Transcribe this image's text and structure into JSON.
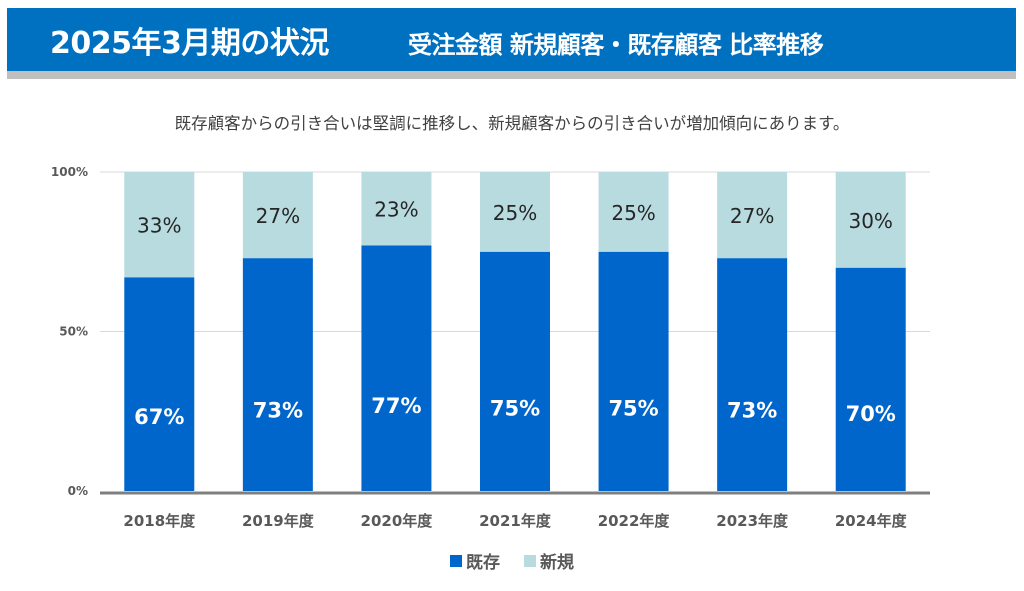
{
  "header": {
    "title": "2025年3月期の状況",
    "subtitle": "受注金額 新規顧客・既存顧客 比率推移"
  },
  "description": "既存顧客からの引き合いは堅調に推移し、新規顧客からの引き合いが増加傾向にあります。",
  "colors": {
    "header_bg": "#0070c0",
    "existing": "#0066cc",
    "new": "#b8dbe0"
  },
  "chart_data": {
    "type": "bar",
    "stacked": true,
    "title": "",
    "xlabel": "",
    "ylabel": "",
    "ylim": [
      0,
      100
    ],
    "yticks": [
      "0%",
      "50%",
      "100%"
    ],
    "ytick_values": [
      0,
      50,
      100
    ],
    "grid": true,
    "legend_position": "bottom",
    "categories": [
      "2018年度",
      "2019年度",
      "2020年度",
      "2021年度",
      "2022年度",
      "2023年度",
      "2024年度"
    ],
    "series": [
      {
        "name": "既存",
        "color": "#0066cc",
        "values": [
          67,
          73,
          77,
          75,
          75,
          73,
          70
        ],
        "labels": [
          "67%",
          "73%",
          "77%",
          "75%",
          "75%",
          "73%",
          "70%"
        ]
      },
      {
        "name": "新規",
        "color": "#b8dbe0",
        "values": [
          33,
          27,
          23,
          25,
          25,
          27,
          30
        ],
        "labels": [
          "33%",
          "27%",
          "23%",
          "25%",
          "25%",
          "27%",
          "30%"
        ]
      }
    ]
  }
}
